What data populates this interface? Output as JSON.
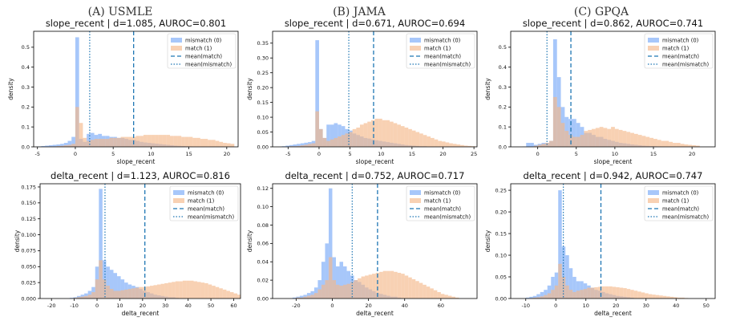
{
  "column_titles": [
    "(A) USMLE",
    "(B) JAMA",
    "(C) GPQA"
  ],
  "colors": {
    "mismatch": "#8ab4f8",
    "match": "#f5b98a",
    "overlap": "#c9a6a0",
    "mean_line": "#1f77b4"
  },
  "chart_data": [
    {
      "type": "histogram",
      "title": "slope_recent  |  d=1.085, AUROC=0.801",
      "xlabel": "slope_recent",
      "ylabel": "density",
      "xlim": [
        -5.5,
        21.5
      ],
      "ylim": [
        0,
        0.58
      ],
      "xticks": [
        -5,
        0,
        5,
        10,
        15,
        20
      ],
      "yticks": [
        0.0,
        0.1,
        0.2,
        0.3,
        0.4,
        0.5
      ],
      "ytick_labels": [
        "0.0",
        "0.1",
        "0.2",
        "0.3",
        "0.4",
        "0.5"
      ],
      "bin_start": -5,
      "bin_width": 0.5,
      "series": [
        {
          "name": "mismatch (0)",
          "values": [
            0.002,
            0.004,
            0.006,
            0.008,
            0.01,
            0.012,
            0.015,
            0.02,
            0.03,
            0.05,
            0.55,
            0.04,
            0.025,
            0.065,
            0.07,
            0.06,
            0.065,
            0.055,
            0.055,
            0.05,
            0.05,
            0.045,
            0.045,
            0.04,
            0.035,
            0.035,
            0.03,
            0.025,
            0.022,
            0.02,
            0.018,
            0.016,
            0.014,
            0.012,
            0.01,
            0.008,
            0.006,
            0.005,
            0.004,
            0.003,
            0.002
          ]
        },
        {
          "name": "match (1)",
          "values": [
            0,
            0,
            0,
            0.002,
            0.002,
            0.004,
            0.005,
            0.008,
            0.01,
            0.015,
            0.2,
            0.12,
            0.045,
            0.03,
            0.035,
            0.04,
            0.04,
            0.04,
            0.04,
            0.045,
            0.045,
            0.045,
            0.05,
            0.05,
            0.05,
            0.05,
            0.055,
            0.055,
            0.06,
            0.06,
            0.06,
            0.06,
            0.06,
            0.06,
            0.06,
            0.055,
            0.055,
            0.055,
            0.05,
            0.05,
            0.05,
            0.045,
            0.045,
            0.04,
            0.04,
            0.035,
            0.035,
            0.03,
            0.025,
            0.02,
            0.018,
            0.015
          ]
        }
      ],
      "mean_match": 7.7,
      "mean_mismatch": 1.9,
      "legend": [
        "mismatch (0)",
        "match (1)",
        "mean(match)",
        "mean(mismatch)"
      ],
      "legend_position": "top-right"
    },
    {
      "type": "histogram",
      "title": "slope_recent  |  d=0.671, AUROC=0.694",
      "xlabel": "slope_recent",
      "ylabel": "density",
      "xlim": [
        -7.5,
        25.5
      ],
      "ylim": [
        0,
        0.39
      ],
      "xticks": [
        -5,
        0,
        5,
        10,
        15,
        20,
        25
      ],
      "yticks": [
        0.0,
        0.05,
        0.1,
        0.15,
        0.2,
        0.25,
        0.3,
        0.35
      ],
      "ytick_labels": [
        "0.00",
        "0.05",
        "0.10",
        "0.15",
        "0.20",
        "0.25",
        "0.30",
        "0.35"
      ],
      "bin_start": -6,
      "bin_width": 0.6,
      "series": [
        {
          "name": "mismatch (0)",
          "values": [
            0.002,
            0.004,
            0.006,
            0.008,
            0.01,
            0.012,
            0.014,
            0.016,
            0.02,
            0.36,
            0.06,
            0.03,
            0.075,
            0.075,
            0.08,
            0.075,
            0.07,
            0.06,
            0.055,
            0.045,
            0.04,
            0.035,
            0.03,
            0.028,
            0.025,
            0.022,
            0.02,
            0.018,
            0.016,
            0.014,
            0.012,
            0.01,
            0.008,
            0.006,
            0.005,
            0.004,
            0.003,
            0.002,
            0.002
          ]
        },
        {
          "name": "match (1)",
          "values": [
            0,
            0,
            0.002,
            0.002,
            0.003,
            0.005,
            0.007,
            0.01,
            0.012,
            0.12,
            0.06,
            0.03,
            0.02,
            0.025,
            0.03,
            0.035,
            0.04,
            0.045,
            0.05,
            0.06,
            0.065,
            0.075,
            0.08,
            0.085,
            0.09,
            0.095,
            0.095,
            0.09,
            0.09,
            0.085,
            0.08,
            0.075,
            0.07,
            0.065,
            0.06,
            0.055,
            0.05,
            0.045,
            0.04,
            0.035,
            0.03,
            0.025,
            0.02,
            0.018,
            0.015,
            0.012,
            0.01,
            0.008,
            0.006,
            0.004,
            0.003,
            0.002
          ]
        }
      ],
      "mean_match": 8.8,
      "mean_mismatch": 4.8,
      "legend": [
        "mismatch (0)",
        "match (1)",
        "mean(match)",
        "mean(mismatch)"
      ],
      "legend_position": "top-right"
    },
    {
      "type": "histogram",
      "title": "slope_recent  |  d=0.862, AUROC=0.741",
      "xlabel": "slope_recent",
      "ylabel": "density",
      "xlim": [
        -3.5,
        23
      ],
      "ylim": [
        0,
        0.58
      ],
      "xticks": [
        0,
        5,
        10,
        15,
        20
      ],
      "yticks": [
        0.0,
        0.1,
        0.2,
        0.3,
        0.4,
        0.5
      ],
      "ytick_labels": [
        "0.0",
        "0.1",
        "0.2",
        "0.3",
        "0.4",
        "0.5"
      ],
      "bin_start": -2,
      "bin_width": 0.5,
      "series": [
        {
          "name": "mismatch (0)",
          "values": [
            0.002,
            0.02,
            0.02,
            0.01,
            0.015,
            0.02,
            0.02,
            0.03,
            0.54,
            0.35,
            0.2,
            0.15,
            0.14,
            0.14,
            0.12,
            0.1,
            0.07,
            0.07,
            0.06,
            0.05,
            0.05,
            0.04,
            0.035,
            0.03,
            0.025,
            0.02,
            0.018,
            0.015,
            0.012,
            0.01,
            0.008,
            0.006,
            0.005,
            0.004,
            0.003,
            0.002
          ]
        },
        {
          "name": "match (1)",
          "values": [
            0,
            0,
            0,
            0.005,
            0.01,
            0.015,
            0.02,
            0.03,
            0.25,
            0.2,
            0.12,
            0.08,
            0.06,
            0.05,
            0.05,
            0.06,
            0.08,
            0.085,
            0.09,
            0.095,
            0.1,
            0.095,
            0.09,
            0.1,
            0.09,
            0.085,
            0.08,
            0.075,
            0.07,
            0.065,
            0.06,
            0.055,
            0.05,
            0.045,
            0.04,
            0.035,
            0.03,
            0.03,
            0.025,
            0.02,
            0.02,
            0.015,
            0.012,
            0.01,
            0.008,
            0.006
          ]
        }
      ],
      "mean_match": 4.3,
      "mean_mismatch": 1.2,
      "legend": [
        "mismatch (0)",
        "match (1)",
        "mean(match)",
        "mean(mismatch)"
      ],
      "legend_position": "top-right"
    },
    {
      "type": "histogram",
      "title": "delta_recent  |  d=1.123, AUROC=0.816",
      "xlabel": "delta_recent",
      "ylabel": "density",
      "xlim": [
        -25,
        63
      ],
      "ylim": [
        0,
        0.18
      ],
      "xticks": [
        -20,
        -10,
        0,
        10,
        20,
        30,
        40,
        50,
        60
      ],
      "yticks": [
        0.0,
        0.025,
        0.05,
        0.075,
        0.1,
        0.125,
        0.15,
        0.175
      ],
      "ytick_labels": [
        "0.000",
        "0.025",
        "0.050",
        "0.075",
        "0.100",
        "0.125",
        "0.150",
        "0.175"
      ],
      "bin_start": -12,
      "bin_width": 1.6,
      "series": [
        {
          "name": "mismatch (0)",
          "values": [
            0.001,
            0.002,
            0.004,
            0.006,
            0.008,
            0.012,
            0.018,
            0.05,
            0.172,
            0.06,
            0.05,
            0.045,
            0.04,
            0.035,
            0.03,
            0.025,
            0.022,
            0.02,
            0.018,
            0.015,
            0.012,
            0.01,
            0.008,
            0.006,
            0.005,
            0.004,
            0.003,
            0.002,
            0.002,
            0.001
          ]
        },
        {
          "name": "match (1)",
          "values": [
            0,
            0.001,
            0.002,
            0.003,
            0.004,
            0.006,
            0.01,
            0.03,
            0.06,
            0.03,
            0.02,
            0.015,
            0.012,
            0.012,
            0.013,
            0.014,
            0.015,
            0.016,
            0.017,
            0.018,
            0.018,
            0.019,
            0.02,
            0.021,
            0.022,
            0.023,
            0.024,
            0.025,
            0.026,
            0.027,
            0.027,
            0.028,
            0.028,
            0.028,
            0.027,
            0.026,
            0.025,
            0.024,
            0.022,
            0.02,
            0.018,
            0.016,
            0.014,
            0.012,
            0.01,
            0.008,
            0.006
          ]
        }
      ],
      "mean_match": 21,
      "mean_mismatch": 3.5,
      "legend": [
        "mismatch (0)",
        "match (1)",
        "mean(match)",
        "mean(mismatch)"
      ],
      "legend_position": "top-right"
    },
    {
      "type": "histogram",
      "title": "delta_recent  |  d=0.752, AUROC=0.717",
      "xlabel": "delta_recent",
      "ylabel": "density",
      "xlim": [
        -33,
        80
      ],
      "ylim": [
        0,
        0.125
      ],
      "xticks": [
        -20,
        0,
        20,
        40,
        60
      ],
      "yticks": [
        0.0,
        0.02,
        0.04,
        0.06,
        0.08,
        0.1,
        0.12
      ],
      "ytick_labels": [
        "0.00",
        "0.02",
        "0.04",
        "0.06",
        "0.08",
        "0.10",
        "0.12"
      ],
      "bin_start": -22,
      "bin_width": 2,
      "series": [
        {
          "name": "mismatch (0)",
          "values": [
            0.001,
            0.002,
            0.003,
            0.004,
            0.006,
            0.008,
            0.012,
            0.02,
            0.04,
            0.06,
            0.12,
            0.045,
            0.035,
            0.04,
            0.035,
            0.03,
            0.025,
            0.02,
            0.018,
            0.015,
            0.012,
            0.01,
            0.008,
            0.006,
            0.005,
            0.004,
            0.003,
            0.002,
            0.002,
            0.001
          ]
        },
        {
          "name": "match (1)",
          "values": [
            0,
            0.001,
            0.001,
            0.002,
            0.003,
            0.004,
            0.006,
            0.01,
            0.015,
            0.02,
            0.045,
            0.02,
            0.015,
            0.014,
            0.015,
            0.016,
            0.018,
            0.02,
            0.022,
            0.024,
            0.025,
            0.026,
            0.027,
            0.028,
            0.029,
            0.03,
            0.03,
            0.03,
            0.029,
            0.028,
            0.027,
            0.025,
            0.023,
            0.021,
            0.019,
            0.017,
            0.015,
            0.013,
            0.011,
            0.009,
            0.007,
            0.005,
            0.004,
            0.003,
            0.002,
            0.001
          ]
        }
      ],
      "mean_match": 25,
      "mean_mismatch": 11,
      "legend": [
        "mismatch (0)",
        "match (1)",
        "mean(match)",
        "mean(mismatch)"
      ],
      "legend_position": "top-right"
    },
    {
      "type": "histogram",
      "title": "delta_recent  |  d=0.942, AUROC=0.747",
      "xlabel": "delta_recent",
      "ylabel": "density",
      "xlim": [
        -15,
        53
      ],
      "ylim": [
        0,
        0.265
      ],
      "xticks": [
        -10,
        0,
        10,
        20,
        30,
        40,
        50
      ],
      "yticks": [
        0.0,
        0.05,
        0.1,
        0.15,
        0.2,
        0.25
      ],
      "ytick_labels": [
        "0.00",
        "0.05",
        "0.10",
        "0.15",
        "0.20",
        "0.25"
      ],
      "bin_start": -10,
      "bin_width": 1.2,
      "series": [
        {
          "name": "mismatch (0)",
          "values": [
            0.002,
            0.004,
            0.006,
            0.01,
            0.015,
            0.02,
            0.03,
            0.05,
            0.06,
            0.25,
            0.12,
            0.1,
            0.07,
            0.05,
            0.04,
            0.04,
            0.035,
            0.03,
            0.025,
            0.02,
            0.018,
            0.015,
            0.012,
            0.01,
            0.008,
            0.006,
            0.005,
            0.004,
            0.003,
            0.002
          ]
        },
        {
          "name": "match (1)",
          "values": [
            0,
            0.001,
            0.002,
            0.003,
            0.005,
            0.008,
            0.012,
            0.02,
            0.03,
            0.08,
            0.05,
            0.03,
            0.02,
            0.015,
            0.018,
            0.02,
            0.022,
            0.025,
            0.025,
            0.026,
            0.027,
            0.028,
            0.028,
            0.028,
            0.027,
            0.026,
            0.025,
            0.024,
            0.022,
            0.02,
            0.018,
            0.016,
            0.014,
            0.012,
            0.01,
            0.009,
            0.008,
            0.007,
            0.006,
            0.005,
            0.004,
            0.003,
            0.002,
            0.002,
            0.001
          ]
        }
      ],
      "mean_match": 15,
      "mean_mismatch": 2.5,
      "legend": [
        "mismatch (0)",
        "match (1)",
        "mean(match)",
        "mean(mismatch)"
      ],
      "legend_position": "top-right"
    }
  ]
}
